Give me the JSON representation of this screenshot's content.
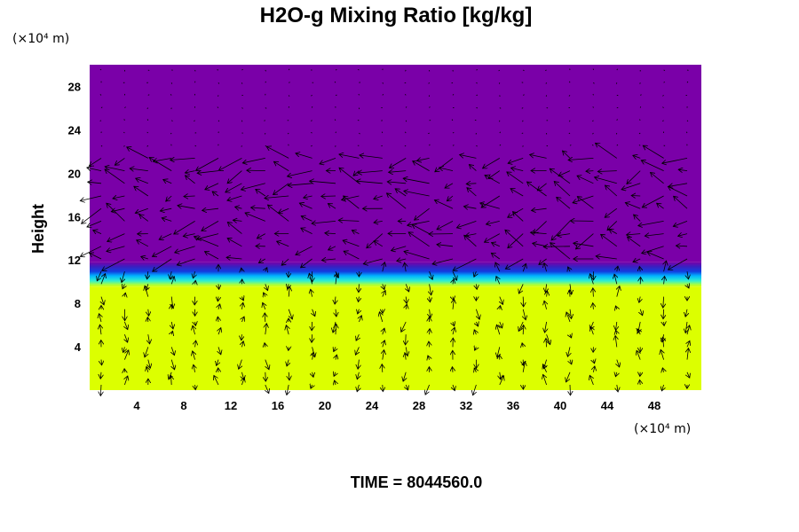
{
  "chart_data": {
    "type": "heatmap",
    "title": "H2O-g Mixing Ratio [kg/kg]",
    "xlabel": "",
    "ylabel": "Height",
    "x_unit": "(×10⁴ m)",
    "y_unit": "(×10⁴ m)",
    "xlim": [
      0,
      52
    ],
    "ylim": [
      0,
      30
    ],
    "x_ticks": [
      4,
      8,
      12,
      16,
      20,
      24,
      28,
      32,
      36,
      40,
      44,
      48
    ],
    "y_ticks": [
      4,
      8,
      12,
      16,
      20,
      24,
      28
    ],
    "grid": false,
    "overlay": "wind vector arrows",
    "layers": [
      {
        "region": "lower moist layer",
        "y_range": [
          0,
          9.5
        ],
        "color": "#dcff00"
      },
      {
        "region": "transition band",
        "y_range": [
          9.5,
          11.8
        ],
        "color": "#00c8ff"
      },
      {
        "region": "upper dry layer",
        "y_range": [
          11.8,
          30
        ],
        "color": "#7a00a8"
      }
    ],
    "footer": "TIME = 8044560.0"
  }
}
